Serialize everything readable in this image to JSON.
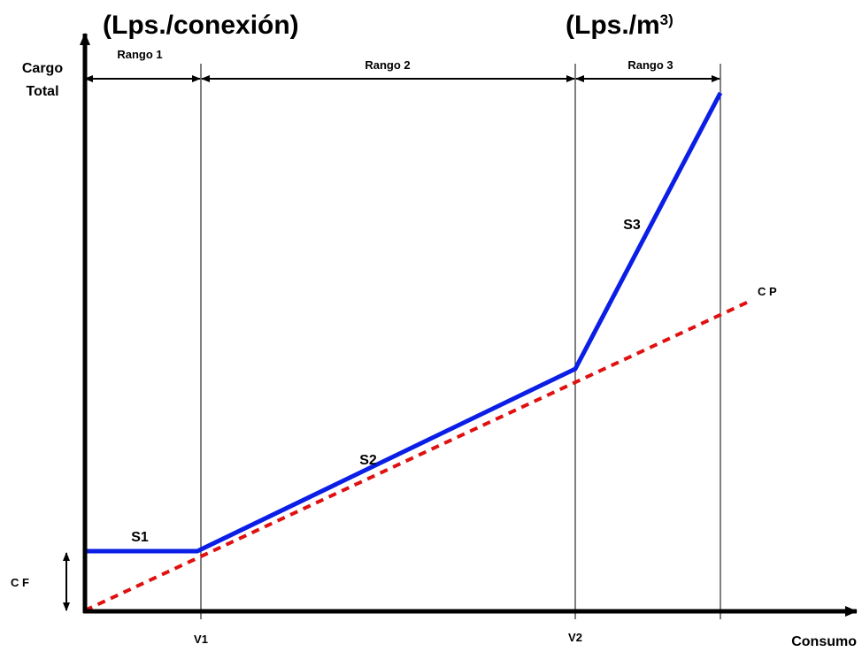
{
  "titles": {
    "left": "(Lps./conexión)",
    "right_main": "(Lps./m",
    "right_sup": "3)"
  },
  "axes": {
    "y_label_line1": "Cargo",
    "y_label_line2": "Total",
    "x_label": "Consumo"
  },
  "ranges": [
    "Rango 1",
    "Rango 2",
    "Rango 3"
  ],
  "x_markers": [
    "V1",
    "V2"
  ],
  "segments": [
    "S1",
    "S2",
    "S3"
  ],
  "line_labels": {
    "cp": "C P",
    "cf": "C F"
  },
  "colors": {
    "tariff_line": "#0a1ee6",
    "cp_line": "#e01010",
    "axis": "#000000",
    "guide": "#000000"
  }
}
